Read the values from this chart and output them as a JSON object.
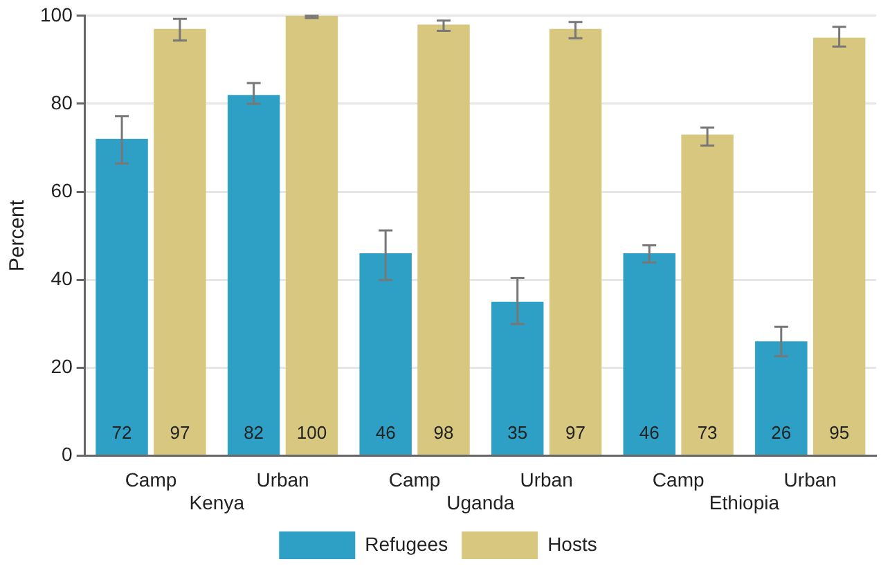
{
  "chart_data": {
    "type": "bar",
    "ylabel": "Percent",
    "categories": [
      "Camp",
      "Urban",
      "Camp",
      "Urban",
      "Camp",
      "Urban"
    ],
    "annotations": [
      "Kenya",
      "Uganda",
      "Ethiopia"
    ],
    "series": [
      {
        "name": "Refugees",
        "color": "#2e9fc5",
        "values": [
          72,
          82,
          46,
          35,
          46,
          26
        ],
        "errors": [
          [
            66.4,
            77.2
          ],
          [
            80,
            84.7
          ],
          [
            39.9,
            51.2
          ],
          [
            29.9,
            40.4
          ],
          [
            43.9,
            47.8
          ],
          [
            22.6,
            29.3
          ]
        ]
      },
      {
        "name": "Hosts",
        "color": "#d8c77e",
        "values": [
          97,
          100,
          98,
          97,
          73,
          95
        ],
        "errors": [
          [
            94.4,
            99.3
          ],
          [
            99.5,
            100
          ],
          [
            96.6,
            98.9
          ],
          [
            94.9,
            98.6
          ],
          [
            70.5,
            74.6
          ],
          [
            93,
            97.5
          ]
        ]
      }
    ],
    "ylim": [
      0,
      100
    ],
    "yticks": [
      0,
      20,
      40,
      60,
      80,
      100
    ],
    "grid": "y",
    "legend": "bottom",
    "data_labels": true
  }
}
